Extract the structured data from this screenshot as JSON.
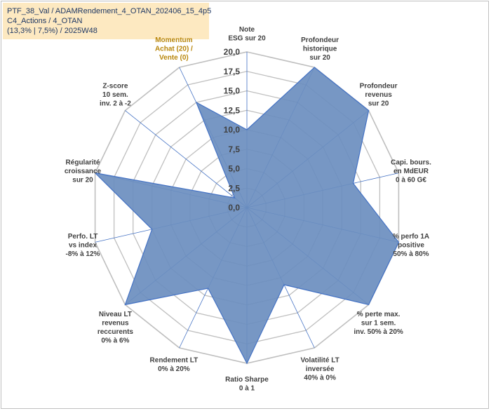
{
  "header": {
    "line1": "PTF_38_Val / ADAMRendement_4_OTAN_202406_15_4p5",
    "line2": "C4_Actions / 4_OTAN",
    "line3": "(13,3% | 7,5%) / 2025W48"
  },
  "chart_data": {
    "type": "radar",
    "axes": [
      {
        "label": [
          "Note",
          "ESG sur 20"
        ],
        "value": 10.0
      },
      {
        "label": [
          "Profondeur",
          "historique",
          "sur 20"
        ],
        "value": 20.0
      },
      {
        "label": [
          "Profondeur",
          "revenus",
          "sur 20"
        ],
        "value": 20.0
      },
      {
        "label": [
          "Capi. bours.",
          "en MdEUR",
          "0 à 60 G€"
        ],
        "value": 14.0
      },
      {
        "label": [
          "% perfo 1A",
          "positive",
          "50% à 80%"
        ],
        "value": 20.0
      },
      {
        "label": [
          "% perte max.",
          "sur 1 sem.",
          "inv. 50% à 20%"
        ],
        "value": 20.0
      },
      {
        "label": [
          "Volatilité LT",
          "inversée",
          "40% à 0%"
        ],
        "value": 11.0
      },
      {
        "label": [
          "Ratio Sharpe",
          "0 à 1"
        ],
        "value": 20.0
      },
      {
        "label": [
          "Rendement LT",
          "0% à 20%"
        ],
        "value": 11.5
      },
      {
        "label": [
          "Niveau LT",
          "revenus",
          "reccurents",
          "0% à 6%"
        ],
        "value": 20.0
      },
      {
        "label": [
          "Perfo. LT",
          "vs index",
          "-8% à 12%"
        ],
        "value": 12.5
      },
      {
        "label": [
          "Régularité",
          "croissance",
          "sur 20"
        ],
        "value": 20.0
      },
      {
        "label": [
          "Z-score",
          "10 sem.",
          "inv. 2 à -2"
        ],
        "value": 2.0
      },
      {
        "label": [
          "Momentum",
          "Achat (20) /",
          "Vente (0)"
        ],
        "value": 15.0
      }
    ],
    "tick_labels": [
      "0,0",
      "2,5",
      "5,0",
      "7,5",
      "10,0",
      "12,5",
      "15,0",
      "17,5",
      "20,0"
    ],
    "rmin": 0,
    "rmax": 20,
    "step": 2.5,
    "colors": {
      "fill": "#6b8ebf",
      "stroke": "#4472c4",
      "grid": "#bfbfbf",
      "spoke": "#4472c4"
    }
  }
}
